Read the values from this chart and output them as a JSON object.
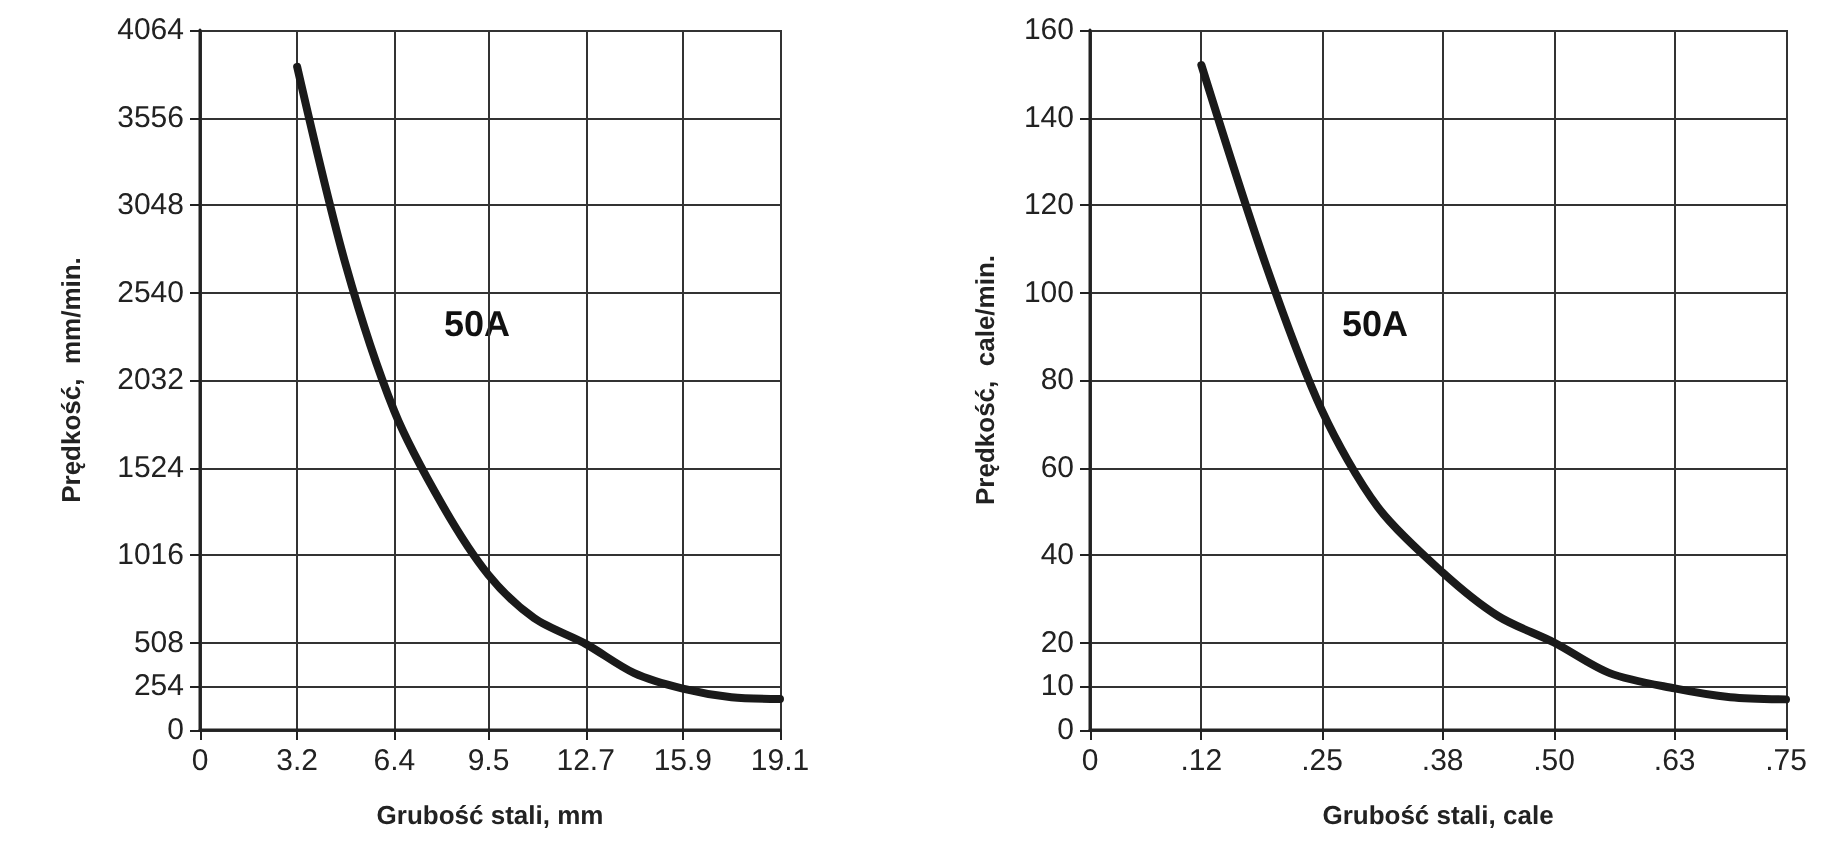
{
  "chart_data": [
    {
      "type": "line",
      "xlabel": "Grubość stali, mm",
      "ylabel": "Prędkość,  mm/min.",
      "x": [
        3.2,
        4.8,
        6.4,
        8,
        9.5,
        11,
        12.7,
        14.3,
        15.9,
        17.5,
        19.1
      ],
      "series": [
        {
          "color": "#1a1a1a",
          "values": [
            3850,
            2700,
            1850,
            1300,
            900,
            650,
            500,
            330,
            240,
            190,
            180
          ]
        }
      ],
      "xlim": [
        0,
        19.1
      ],
      "xticks": [
        0,
        3.2,
        6.4,
        9.5,
        12.7,
        15.9,
        19.1
      ],
      "ylim": [
        0,
        4064
      ],
      "yticks": [
        0,
        254,
        508,
        1016,
        1524,
        2032,
        2540,
        3048,
        3556,
        4064
      ],
      "annotations": [
        "50A"
      ],
      "grid": true,
      "marker": "none",
      "line_style": "solid"
    },
    {
      "type": "line",
      "xlabel": "Grubość stali, cale",
      "ylabel": "Prędkość,  cale/min.",
      "x": [
        0.12,
        0.19,
        0.25,
        0.31,
        0.38,
        0.44,
        0.5,
        0.56,
        0.63,
        0.69,
        0.75
      ],
      "series": [
        {
          "color": "#1a1a1a",
          "values": [
            152,
            106,
            73,
            51,
            36,
            26,
            20,
            13,
            9.5,
            7.5,
            7
          ]
        }
      ],
      "xlim": [
        0,
        0.75
      ],
      "xticks": [
        0,
        {
          "value": 0.12,
          "label": ".12"
        },
        {
          "value": 0.25,
          "label": ".25"
        },
        {
          "value": 0.38,
          "label": ".38"
        },
        {
          "value": 0.5,
          "label": ".50"
        },
        {
          "value": 0.63,
          "label": ".63"
        },
        {
          "value": 0.75,
          "label": ".75"
        }
      ],
      "ylim": [
        0,
        160
      ],
      "yticks": [
        0,
        10,
        20,
        40,
        60,
        80,
        100,
        120,
        140,
        160
      ],
      "annotations": [
        "50A"
      ],
      "grid": true,
      "marker": "none",
      "line_style": "solid"
    }
  ]
}
